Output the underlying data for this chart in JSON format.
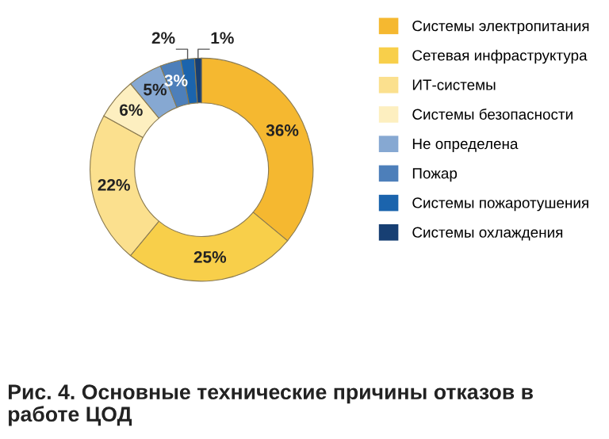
{
  "chart_data": {
    "type": "donut",
    "title": "Рис. 4. Основные технические причины отказов в работе ЦОД",
    "categories": [
      "Системы электропитания",
      "Сетевая инфраструктура",
      "ИТ-системы",
      "Системы безопасности",
      "Не определена",
      "Пожар",
      "Системы пожаротушения",
      "Системы охлаждения"
    ],
    "values": [
      36,
      25,
      22,
      6,
      5,
      3,
      2,
      1
    ],
    "colors": [
      "#f5b830",
      "#f8cf4a",
      "#fbe08e",
      "#fdefc0",
      "#86a8d2",
      "#4d7fba",
      "#1b64ad",
      "#173f73"
    ],
    "value_labels": [
      "36%",
      "25%",
      "22%",
      "6%",
      "5%",
      "3%",
      "2%",
      "1%"
    ],
    "legend": "right"
  }
}
